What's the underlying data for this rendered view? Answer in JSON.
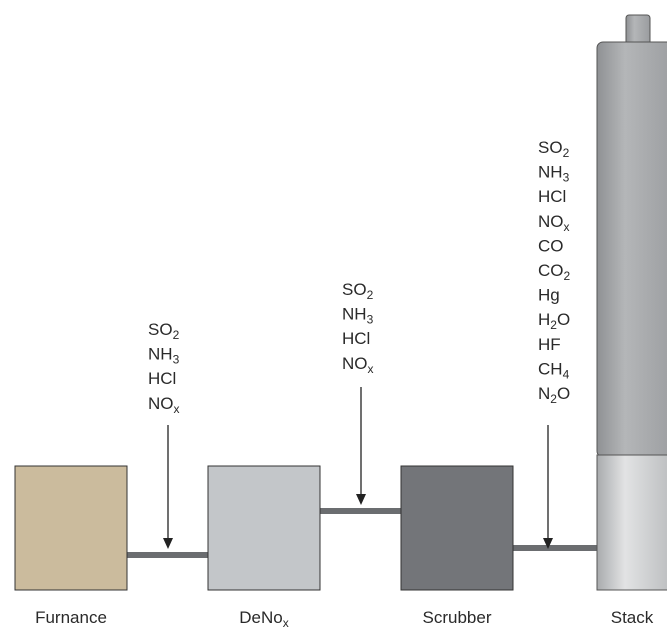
{
  "units": [
    {
      "label": [
        "Furnance"
      ]
    },
    {
      "label": [
        "DeNo",
        "x"
      ]
    },
    {
      "label": [
        "Scrubber"
      ]
    },
    {
      "label": [
        "Stack"
      ]
    }
  ],
  "measurement_points": [
    {
      "gases": [
        [
          "SO",
          "2"
        ],
        [
          "NH",
          "3"
        ],
        [
          "HCl"
        ],
        [
          "NO",
          "x"
        ]
      ]
    },
    {
      "gases": [
        [
          "SO",
          "2"
        ],
        [
          "NH",
          "3"
        ],
        [
          "HCl"
        ],
        [
          "NO",
          "x"
        ]
      ]
    },
    {
      "gases": [
        [
          "SO",
          "2"
        ],
        [
          "NH",
          "3"
        ],
        [
          "HCl"
        ],
        [
          "NO",
          "x"
        ],
        [
          "CO"
        ],
        [
          "CO",
          "2"
        ],
        [
          "Hg"
        ],
        [
          "H",
          "2",
          "O"
        ],
        [
          "HF"
        ],
        [
          "CH",
          "4"
        ],
        [
          "N",
          "2",
          "O"
        ]
      ]
    }
  ]
}
